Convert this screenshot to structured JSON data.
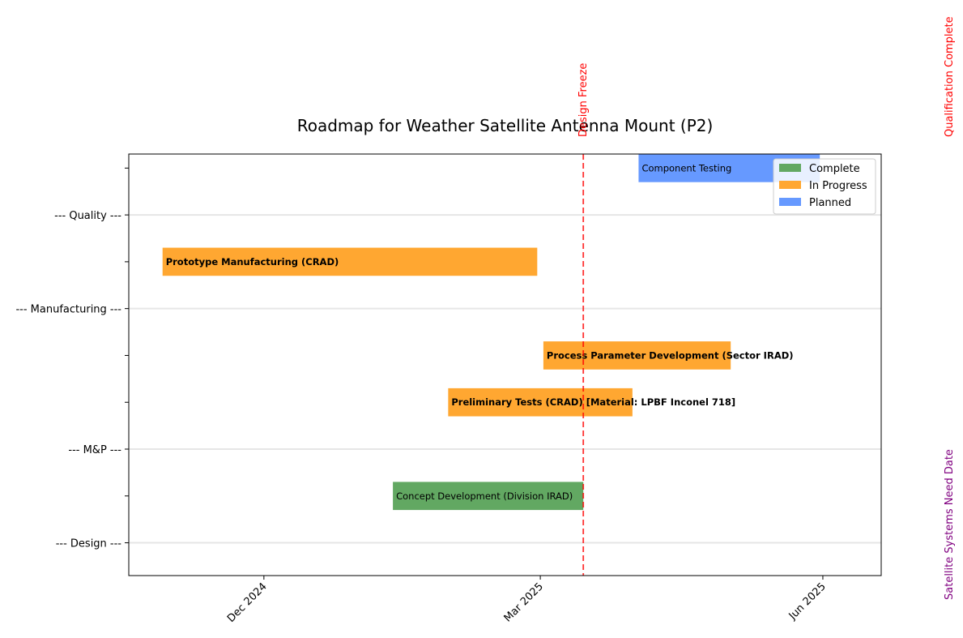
{
  "chart_data": {
    "type": "gantt",
    "title": "Roadmap for Weather Satellite Antenna Mount (P2)",
    "x_axis": {
      "type": "date",
      "range": [
        "2024-10-18",
        "2025-06-20"
      ],
      "ticks": [
        {
          "date": "2024-12-01",
          "label": "Dec 2024"
        },
        {
          "date": "2025-03-01",
          "label": "Mar 2025"
        },
        {
          "date": "2025-06-01",
          "label": "Jun 2025"
        }
      ]
    },
    "y_axis": {
      "rows": [
        {
          "label": "--- Design ---",
          "type": "section"
        },
        {
          "label": "",
          "type": "task"
        },
        {
          "label": "--- M&P ---",
          "type": "section"
        },
        {
          "label": "",
          "type": "task"
        },
        {
          "label": "",
          "type": "task"
        },
        {
          "label": "--- Manufacturing ---",
          "type": "section"
        },
        {
          "label": "",
          "type": "task"
        },
        {
          "label": "--- Quality ---",
          "type": "section"
        },
        {
          "label": "",
          "type": "task"
        }
      ]
    },
    "tasks": [
      {
        "row": 1,
        "name": "Concept Development (Division IRAD)",
        "start": "2025-01-12",
        "end": "2025-03-15",
        "status": "Complete",
        "bold": false
      },
      {
        "row": 3,
        "name": "Preliminary Tests (CRAD) [Material: LPBF Inconel 718]",
        "start": "2025-01-30",
        "end": "2025-03-31",
        "status": "In Progress",
        "bold": true
      },
      {
        "row": 4,
        "name": "Process Parameter Development (Sector IRAD)",
        "start": "2025-03-02",
        "end": "2025-05-02",
        "status": "In Progress",
        "bold": true
      },
      {
        "row": 6,
        "name": "Prototype Manufacturing (CRAD)",
        "start": "2024-10-29",
        "end": "2025-02-28",
        "status": "In Progress",
        "bold": true
      },
      {
        "row": 8,
        "name": "Component Testing",
        "start": "2025-04-02",
        "end": "2025-05-31",
        "status": "Planned",
        "bold": false
      }
    ],
    "milestones": [
      {
        "label": "Design Freeze",
        "date": "2025-03-15",
        "color": "#ff0000",
        "style": "dashed",
        "label_position": "top"
      },
      {
        "label": "Qualification Complete",
        "color": "#ff0000",
        "label_position": "right-top"
      },
      {
        "label": "Satellite Systems Need Date",
        "color": "#800080",
        "label_position": "right-bottom"
      }
    ],
    "legend": {
      "position": "top-right",
      "entries": [
        {
          "label": "Complete",
          "color": "#62a862"
        },
        {
          "label": "In Progress",
          "color": "#ffa731"
        },
        {
          "label": "Planned",
          "color": "#6699ff"
        }
      ]
    },
    "grid": "horizontal at section rows"
  }
}
